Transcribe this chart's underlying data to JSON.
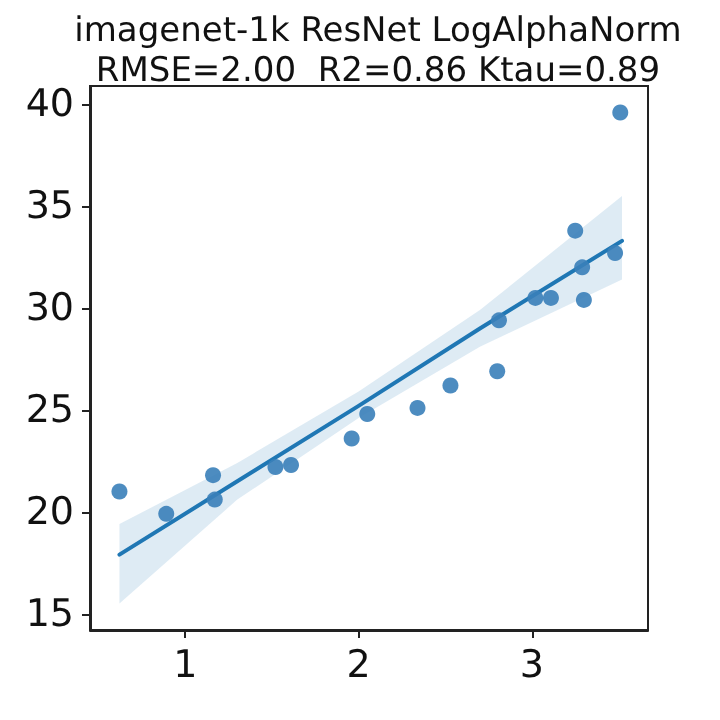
{
  "chart_data": {
    "type": "scatter",
    "title": "imagenet-1k ResNet LogAlphaNorm",
    "subtitle": "RMSE=2.00  R2=0.86 Ktau=0.89",
    "xlim": [
      0.45,
      3.67
    ],
    "ylim": [
      14.2,
      40.9
    ],
    "xticks": [
      1,
      2,
      3
    ],
    "yticks": [
      15,
      20,
      25,
      30,
      35,
      40
    ],
    "grid": false,
    "series": [
      {
        "color": "#3a80b9",
        "marker": "circle",
        "x": [
          0.62,
          0.89,
          1.16,
          1.17,
          1.52,
          1.61,
          1.96,
          2.05,
          2.34,
          2.53,
          2.8,
          2.81,
          3.02,
          3.11,
          3.25,
          3.29,
          3.3,
          3.48,
          3.51
        ],
        "values": [
          21.0,
          19.9,
          21.8,
          20.6,
          22.2,
          22.3,
          23.6,
          24.8,
          25.1,
          26.2,
          26.9,
          29.4,
          30.5,
          30.5,
          33.8,
          32.0,
          30.4,
          32.7,
          39.6
        ]
      },
      {
        "type": "line",
        "color": "#1f77b4",
        "marker": "none",
        "line_style": "solid",
        "x": [
          0.62,
          1.3,
          2.0,
          2.7,
          3.52
        ],
        "values": [
          17.9,
          21.5,
          25.2,
          29.0,
          33.3
        ],
        "lower": [
          15.5,
          20.6,
          24.6,
          28.1,
          31.4
        ],
        "upper": [
          19.4,
          22.4,
          25.9,
          29.9,
          35.5
        ]
      }
    ]
  }
}
